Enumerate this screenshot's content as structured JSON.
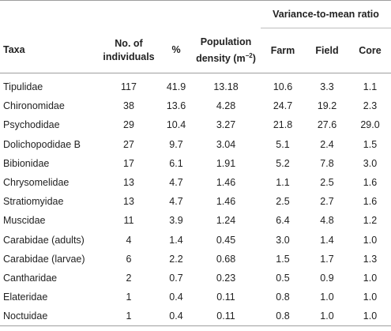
{
  "table": {
    "group_header": "Variance-to-mean ratio",
    "columns": {
      "taxa": "Taxa",
      "individuals_line1": "No. of",
      "individuals_line2": "individuals",
      "percent": "%",
      "density_line1": "Population",
      "density_line2": "density (m",
      "density_exp": "−2",
      "density_close": ")",
      "farm": "Farm",
      "field": "Field",
      "core": "Core"
    },
    "rows": [
      {
        "taxa": "Tipulidae",
        "n": "117",
        "pct": "41.9",
        "density": "13.18",
        "farm": "10.6",
        "field": "3.3",
        "core": "1.1"
      },
      {
        "taxa": "Chironomidae",
        "n": "38",
        "pct": "13.6",
        "density": "4.28",
        "farm": "24.7",
        "field": "19.2",
        "core": "2.3"
      },
      {
        "taxa": "Psychodidae",
        "n": "29",
        "pct": "10.4",
        "density": "3.27",
        "farm": "21.8",
        "field": "27.6",
        "core": "29.0"
      },
      {
        "taxa": "Dolichopodidae B",
        "n": "27",
        "pct": "9.7",
        "density": "3.04",
        "farm": "5.1",
        "field": "2.4",
        "core": "1.5"
      },
      {
        "taxa": "Bibionidae",
        "n": "17",
        "pct": "6.1",
        "density": "1.91",
        "farm": "5.2",
        "field": "7.8",
        "core": "3.0"
      },
      {
        "taxa": "Chrysomelidae",
        "n": "13",
        "pct": "4.7",
        "density": "1.46",
        "farm": "1.1",
        "field": "2.5",
        "core": "1.6"
      },
      {
        "taxa": "Stratiomyidae",
        "n": "13",
        "pct": "4.7",
        "density": "1.46",
        "farm": "2.5",
        "field": "2.7",
        "core": "1.6"
      },
      {
        "taxa": "Muscidae",
        "n": "11",
        "pct": "3.9",
        "density": "1.24",
        "farm": "6.4",
        "field": "4.8",
        "core": "1.2"
      },
      {
        "taxa": "Carabidae (adults)",
        "n": "4",
        "pct": "1.4",
        "density": "0.45",
        "farm": "3.0",
        "field": "1.4",
        "core": "1.0"
      },
      {
        "taxa": "Carabidae (larvae)",
        "n": "6",
        "pct": "2.2",
        "density": "0.68",
        "farm": "1.5",
        "field": "1.7",
        "core": "1.3"
      },
      {
        "taxa": "Cantharidae",
        "n": "2",
        "pct": "0.7",
        "density": "0.23",
        "farm": "0.5",
        "field": "0.9",
        "core": "1.0"
      },
      {
        "taxa": "Elateridae",
        "n": "1",
        "pct": "0.4",
        "density": "0.11",
        "farm": "0.8",
        "field": "1.0",
        "core": "1.0"
      },
      {
        "taxa": "Noctuidae",
        "n": "1",
        "pct": "0.4",
        "density": "0.11",
        "farm": "0.8",
        "field": "1.0",
        "core": "1.0"
      }
    ]
  }
}
